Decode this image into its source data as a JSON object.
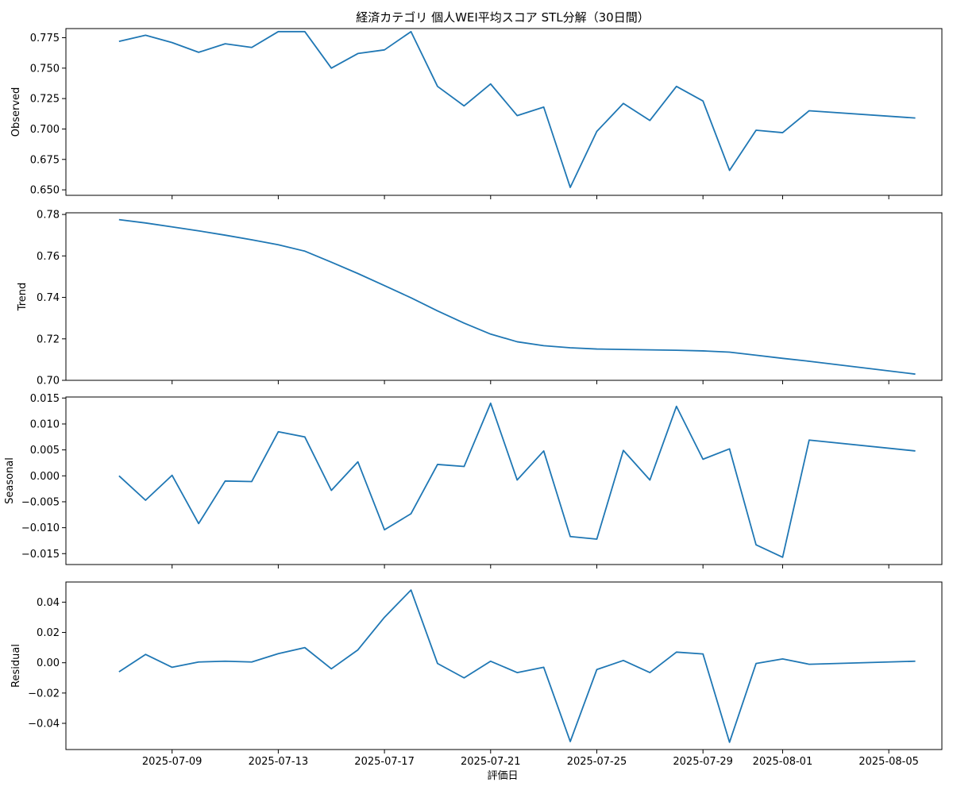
{
  "chart_data": {
    "type": "line",
    "title": "経済カテゴリ 個人WEI平均スコア STL分解（30日間）",
    "xlabel": "評価日",
    "x_tick_labels": [
      "2025-07-09",
      "2025-07-13",
      "2025-07-17",
      "2025-07-21",
      "2025-07-25",
      "2025-07-29",
      "2025-08-01",
      "2025-08-05"
    ],
    "x_tick_dates": [
      "2025-07-09",
      "2025-07-13",
      "2025-07-17",
      "2025-07-21",
      "2025-07-25",
      "2025-07-29",
      "2025-08-01",
      "2025-08-05"
    ],
    "xlim": [
      "2025-07-05",
      "2025-08-07"
    ],
    "x": [
      "2025-07-07",
      "2025-07-08",
      "2025-07-09",
      "2025-07-10",
      "2025-07-11",
      "2025-07-12",
      "2025-07-13",
      "2025-07-14",
      "2025-07-15",
      "2025-07-16",
      "2025-07-17",
      "2025-07-18",
      "2025-07-19",
      "2025-07-20",
      "2025-07-21",
      "2025-07-22",
      "2025-07-23",
      "2025-07-24",
      "2025-07-25",
      "2025-07-26",
      "2025-07-27",
      "2025-07-28",
      "2025-07-29",
      "2025-07-30",
      "2025-07-31",
      "2025-08-01",
      "2025-08-02",
      "2025-08-06"
    ],
    "line_color": "#1f77b4",
    "grid": false,
    "panels": [
      {
        "ylabel": "Observed",
        "ylim": [
          0.6455,
          0.7825
        ],
        "yticks": [
          0.65,
          0.675,
          0.7,
          0.725,
          0.75,
          0.775
        ],
        "ytick_labels": [
          "0.650",
          "0.675",
          "0.700",
          "0.725",
          "0.750",
          "0.775"
        ],
        "values": [
          0.772,
          0.777,
          0.771,
          0.763,
          0.77,
          0.767,
          0.78,
          0.78,
          0.75,
          0.762,
          0.765,
          0.78,
          0.735,
          0.719,
          0.737,
          0.711,
          0.718,
          0.652,
          0.698,
          0.721,
          0.707,
          0.735,
          0.723,
          0.666,
          0.699,
          0.697,
          0.715,
          0.709
        ]
      },
      {
        "ylabel": "Trend",
        "ylim": [
          0.7,
          0.7808
        ],
        "yticks": [
          0.7,
          0.72,
          0.74,
          0.76,
          0.78
        ],
        "ytick_labels": [
          "0.70",
          "0.72",
          "0.74",
          "0.76",
          "0.78"
        ],
        "values": [
          0.7775,
          0.7759,
          0.774,
          0.7721,
          0.77,
          0.7678,
          0.7654,
          0.7623,
          0.757,
          0.7515,
          0.7457,
          0.7398,
          0.7335,
          0.7276,
          0.7223,
          0.7186,
          0.7167,
          0.7157,
          0.7151,
          0.7149,
          0.7147,
          0.7145,
          0.7142,
          0.7136,
          0.7121,
          0.7106,
          0.7092,
          0.703
        ]
      },
      {
        "ylabel": "Seasonal",
        "ylim": [
          -0.0171,
          0.0152
        ],
        "yticks": [
          -0.015,
          -0.01,
          -0.005,
          0.0,
          0.005,
          0.01,
          0.015
        ],
        "ytick_labels": [
          "−0.015",
          "−0.010",
          "−0.005",
          "0.000",
          "0.005",
          "0.010",
          "0.015"
        ],
        "values": [
          0.0,
          -0.0047,
          0.0001,
          -0.0092,
          -0.001,
          -0.0011,
          0.0085,
          0.0075,
          -0.0028,
          0.0027,
          -0.0104,
          -0.0073,
          0.0022,
          0.0018,
          0.014,
          -0.0008,
          0.0048,
          -0.0117,
          -0.0122,
          0.0049,
          -0.0008,
          0.0134,
          0.0032,
          0.0052,
          -0.0133,
          -0.0157,
          0.0069,
          0.0048
        ]
      },
      {
        "ylabel": "Residual",
        "ylim": [
          -0.0573,
          0.0533
        ],
        "yticks": [
          -0.04,
          -0.02,
          0.0,
          0.02,
          0.04
        ],
        "ytick_labels": [
          "−0.04",
          "−0.02",
          "0.00",
          "0.02",
          "0.04"
        ],
        "values": [
          -0.006,
          0.0055,
          -0.003,
          0.0005,
          0.001,
          0.0005,
          0.006,
          0.01,
          -0.004,
          0.0085,
          0.03,
          0.048,
          -0.0005,
          -0.01,
          0.001,
          -0.0065,
          -0.003,
          -0.052,
          -0.0045,
          0.0015,
          -0.0065,
          0.007,
          0.0058,
          -0.0525,
          -0.0005,
          0.0025,
          -0.001,
          0.001
        ]
      }
    ]
  }
}
